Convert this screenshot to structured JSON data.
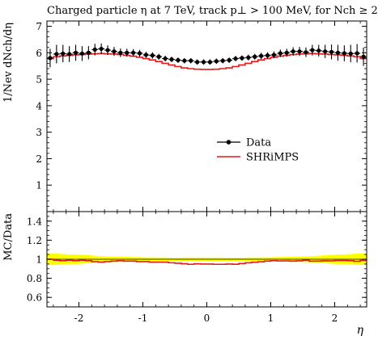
{
  "chart_data": [
    {
      "type": "scatter",
      "title": "Charged particle η at 7 TeV, track p⊥ > 100 MeV, for Nch ≥ 2",
      "xlabel": "η",
      "ylabel": "1/Nev dNch/dη",
      "xlim": [
        -2.5,
        2.5
      ],
      "ylim": [
        0,
        7.2
      ],
      "yticks": [
        1,
        2,
        3,
        4,
        5,
        6,
        7
      ],
      "xticks": [
        -2,
        -1,
        0,
        1,
        2
      ],
      "legend_position": "center-right",
      "series": [
        {
          "name": "Data",
          "type": "errorbar",
          "color": "#000000",
          "x": [
            -2.45,
            -2.35,
            -2.25,
            -2.15,
            -2.05,
            -1.95,
            -1.85,
            -1.75,
            -1.65,
            -1.55,
            -1.45,
            -1.35,
            -1.25,
            -1.15,
            -1.05,
            -0.95,
            -0.85,
            -0.75,
            -0.65,
            -0.55,
            -0.45,
            -0.35,
            -0.25,
            -0.15,
            -0.05,
            0.05,
            0.15,
            0.25,
            0.35,
            0.45,
            0.55,
            0.65,
            0.75,
            0.85,
            0.95,
            1.05,
            1.15,
            1.25,
            1.35,
            1.45,
            1.55,
            1.65,
            1.75,
            1.85,
            1.95,
            2.05,
            2.15,
            2.25,
            2.35,
            2.45
          ],
          "y": [
            5.8,
            5.95,
            5.97,
            5.95,
            6.0,
            5.97,
            6.0,
            6.12,
            6.15,
            6.1,
            6.05,
            6.0,
            6.0,
            6.0,
            5.98,
            5.92,
            5.9,
            5.85,
            5.78,
            5.75,
            5.72,
            5.7,
            5.7,
            5.65,
            5.65,
            5.65,
            5.68,
            5.7,
            5.72,
            5.78,
            5.8,
            5.82,
            5.85,
            5.88,
            5.9,
            5.92,
            5.98,
            6.0,
            6.05,
            6.05,
            6.02,
            6.1,
            6.08,
            6.05,
            6.03,
            6.0,
            5.98,
            5.97,
            5.98,
            5.85
          ],
          "yerr": [
            0.35,
            0.35,
            0.33,
            0.3,
            0.3,
            0.28,
            0.25,
            0.22,
            0.2,
            0.18,
            0.17,
            0.16,
            0.15,
            0.14,
            0.13,
            0.12,
            0.12,
            0.11,
            0.11,
            0.1,
            0.1,
            0.1,
            0.1,
            0.1,
            0.1,
            0.1,
            0.1,
            0.1,
            0.1,
            0.1,
            0.1,
            0.11,
            0.11,
            0.12,
            0.12,
            0.13,
            0.14,
            0.15,
            0.16,
            0.17,
            0.18,
            0.2,
            0.22,
            0.25,
            0.28,
            0.3,
            0.3,
            0.33,
            0.35,
            0.35
          ]
        },
        {
          "name": "SHRiMPS",
          "type": "step",
          "color": "#e41a1c",
          "x": [
            -2.45,
            -2.35,
            -2.25,
            -2.15,
            -2.05,
            -1.95,
            -1.85,
            -1.75,
            -1.65,
            -1.55,
            -1.45,
            -1.35,
            -1.25,
            -1.15,
            -1.05,
            -0.95,
            -0.85,
            -0.75,
            -0.65,
            -0.55,
            -0.45,
            -0.35,
            -0.25,
            -0.15,
            -0.05,
            0.05,
            0.15,
            0.25,
            0.35,
            0.45,
            0.55,
            0.65,
            0.75,
            0.85,
            0.95,
            1.05,
            1.15,
            1.25,
            1.35,
            1.45,
            1.55,
            1.65,
            1.75,
            1.85,
            1.95,
            2.05,
            2.15,
            2.25,
            2.35,
            2.45
          ],
          "y": [
            5.78,
            5.85,
            5.88,
            5.9,
            5.92,
            5.93,
            5.95,
            5.96,
            5.97,
            5.96,
            5.95,
            5.93,
            5.9,
            5.87,
            5.83,
            5.78,
            5.73,
            5.67,
            5.6,
            5.54,
            5.48,
            5.43,
            5.4,
            5.38,
            5.37,
            5.37,
            5.38,
            5.4,
            5.43,
            5.48,
            5.54,
            5.6,
            5.67,
            5.73,
            5.78,
            5.83,
            5.87,
            5.9,
            5.93,
            5.95,
            5.96,
            5.97,
            5.96,
            5.95,
            5.93,
            5.92,
            5.9,
            5.88,
            5.85,
            5.78
          ]
        }
      ]
    },
    {
      "type": "line",
      "xlabel": "η",
      "ylabel": "MC/Data",
      "xlim": [
        -2.5,
        2.5
      ],
      "ylim": [
        0.5,
        1.5
      ],
      "yticks": [
        0.6,
        0.8,
        1,
        1.2,
        1.4
      ],
      "xticks": [
        -2,
        -1,
        0,
        1,
        2
      ],
      "xticklabels": [
        "-2",
        "-1",
        "0",
        "1",
        "2"
      ],
      "band_color": "#ffff00",
      "series": [
        {
          "name": "SHRiMPS",
          "type": "step",
          "color": "#e41a1c",
          "x": [
            -2.45,
            -2.35,
            -2.25,
            -2.15,
            -2.05,
            -1.95,
            -1.85,
            -1.75,
            -1.65,
            -1.55,
            -1.45,
            -1.35,
            -1.25,
            -1.15,
            -1.05,
            -0.95,
            -0.85,
            -0.75,
            -0.65,
            -0.55,
            -0.45,
            -0.35,
            -0.25,
            -0.15,
            -0.05,
            0.05,
            0.15,
            0.25,
            0.35,
            0.45,
            0.55,
            0.65,
            0.75,
            0.85,
            0.95,
            1.05,
            1.15,
            1.25,
            1.35,
            1.45,
            1.55,
            1.65,
            1.75,
            1.85,
            1.95,
            2.05,
            2.15,
            2.25,
            2.35,
            2.45
          ],
          "y": [
            1.0,
            0.99,
            0.985,
            0.99,
            0.985,
            0.99,
            0.985,
            0.975,
            0.97,
            0.975,
            0.98,
            0.985,
            0.98,
            0.98,
            0.975,
            0.975,
            0.97,
            0.97,
            0.97,
            0.963,
            0.958,
            0.953,
            0.947,
            0.952,
            0.95,
            0.95,
            0.947,
            0.947,
            0.95,
            0.948,
            0.955,
            0.962,
            0.969,
            0.974,
            0.98,
            0.985,
            0.982,
            0.983,
            0.98,
            0.984,
            0.99,
            0.979,
            0.98,
            0.984,
            0.983,
            0.987,
            0.987,
            0.985,
            0.978,
            0.988
          ]
        },
        {
          "name": "Data uncertainty",
          "type": "band",
          "x": [
            -2.45,
            -2.35,
            -2.25,
            -2.15,
            -2.05,
            -1.95,
            -1.85,
            -1.75,
            -1.65,
            -1.55,
            -1.45,
            -1.35,
            -1.25,
            -1.15,
            -1.05,
            -0.95,
            -0.85,
            -0.75,
            -0.65,
            -0.55,
            -0.45,
            -0.35,
            -0.25,
            -0.15,
            -0.05,
            0.05,
            0.15,
            0.25,
            0.35,
            0.45,
            0.55,
            0.65,
            0.75,
            0.85,
            0.95,
            1.05,
            1.15,
            1.25,
            1.35,
            1.45,
            1.55,
            1.65,
            1.75,
            1.85,
            1.95,
            2.05,
            2.15,
            2.25,
            2.35,
            2.45
          ],
          "yerr": [
            0.06,
            0.059,
            0.055,
            0.05,
            0.05,
            0.047,
            0.042,
            0.036,
            0.033,
            0.03,
            0.028,
            0.027,
            0.025,
            0.023,
            0.022,
            0.02,
            0.02,
            0.019,
            0.019,
            0.017,
            0.017,
            0.018,
            0.018,
            0.018,
            0.018,
            0.018,
            0.018,
            0.018,
            0.017,
            0.017,
            0.017,
            0.019,
            0.019,
            0.02,
            0.02,
            0.022,
            0.023,
            0.025,
            0.026,
            0.028,
            0.03,
            0.033,
            0.036,
            0.041,
            0.046,
            0.05,
            0.05,
            0.055,
            0.059,
            0.06
          ]
        }
      ]
    }
  ]
}
